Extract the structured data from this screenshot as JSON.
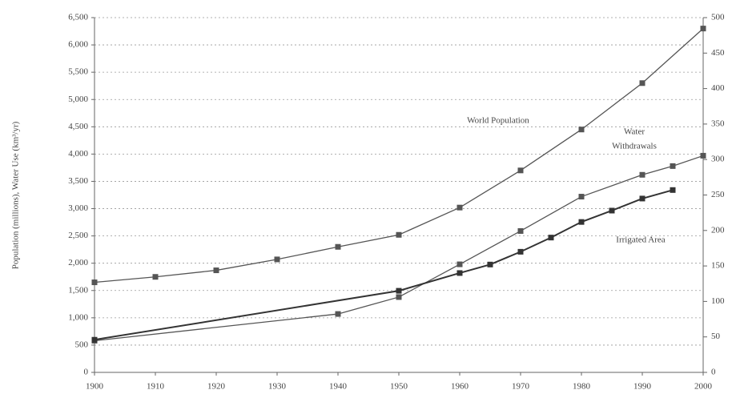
{
  "chart_data": {
    "type": "line",
    "y_label": "Population (millions), Water Use (km³/yr)",
    "xlim": [
      1900,
      2000
    ],
    "xticks": [
      1900,
      1910,
      1920,
      1930,
      1940,
      1950,
      1960,
      1970,
      1980,
      1990,
      2000
    ],
    "ylim": [
      0,
      6500
    ],
    "yticks": [
      0,
      500,
      {
        "value": 1000,
        "label": "1,000"
      },
      {
        "value": 1500,
        "label": "1,500"
      },
      {
        "value": 2000,
        "label": "2,000"
      },
      {
        "value": 2500,
        "label": "2,500"
      },
      {
        "value": 3000,
        "label": "3,000"
      },
      {
        "value": 3500,
        "label": "3,500"
      },
      {
        "value": 4000,
        "label": "4,000"
      },
      {
        "value": 4500,
        "label": "4,500"
      },
      {
        "value": 5000,
        "label": "5,000"
      },
      {
        "value": 5500,
        "label": "5,500"
      },
      {
        "value": 6000,
        "label": "6,000"
      },
      {
        "value": 6500,
        "label": "6,500"
      }
    ],
    "y2lim": [
      0,
      500
    ],
    "y2ticks": [
      0,
      50,
      100,
      150,
      200,
      250,
      300,
      350,
      400,
      450,
      500
    ],
    "grid": true,
    "annotations": [
      "World Population",
      "Water",
      "Withdrawals",
      "Irrigated Area"
    ],
    "series": [
      {
        "name": "World Population",
        "color": "#555555",
        "x": [
          1900,
          1910,
          1920,
          1930,
          1940,
          1950,
          1960,
          1970,
          1980,
          1990,
          2000
        ],
        "values": [
          1650,
          1750,
          1870,
          2070,
          2300,
          2520,
          3020,
          3700,
          4450,
          5300,
          6300
        ]
      },
      {
        "name": "Water Withdrawals",
        "color": "#555555",
        "x": [
          1900,
          1940,
          1950,
          1960,
          1970,
          1980,
          1990,
          1995,
          2000
        ],
        "values": [
          580,
          1070,
          1380,
          1980,
          2590,
          3220,
          3620,
          3780,
          3970
        ]
      },
      {
        "name": "Irrigated Area",
        "color": "#333333",
        "axis": "y2",
        "x": [
          1900,
          1950,
          1960,
          1965,
          1970,
          1975,
          1980,
          1985,
          1990,
          1995
        ],
        "values": [
          46,
          115,
          140,
          152,
          170,
          190,
          212,
          228,
          245,
          257
        ]
      }
    ]
  }
}
